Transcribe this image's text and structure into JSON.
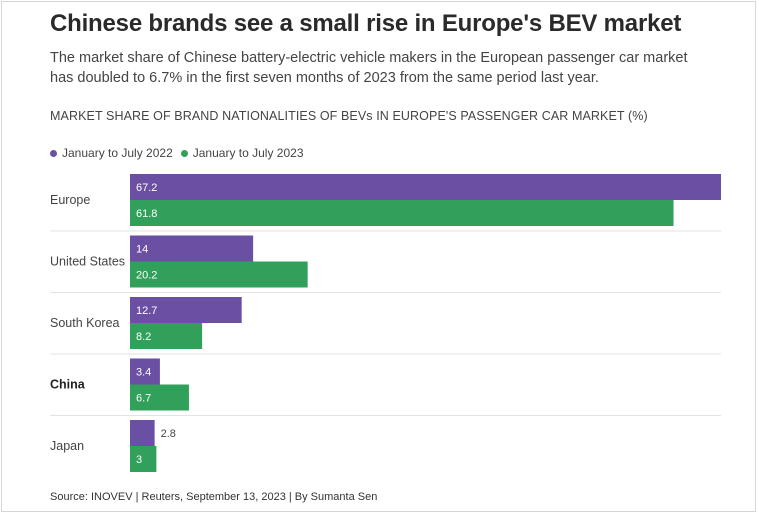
{
  "title": "Chinese brands see a small rise in Europe's BEV market",
  "subtitle": "The market share of Chinese battery-electric vehicle makers in the European passenger car market has doubled to 6.7% in the first seven months of 2023 from the same period last year.",
  "chart_label": "MARKET SHARE OF BRAND NATIONALITIES OF BEVs IN EUROPE'S PASSENGER CAR MARKET (%)",
  "source": "Source: INOVEV | Reuters, September 13, 2023 | By Sumanta Sen",
  "colors": {
    "series_2022": "#6a4fa3",
    "series_2023": "#30a05a",
    "divider": "#e3e3e3"
  },
  "legend": [
    {
      "label": "January to July 2022",
      "color_key": "series_2022"
    },
    {
      "label": "January to July 2023",
      "color_key": "series_2023"
    }
  ],
  "chart_data": {
    "type": "bar",
    "orientation": "horizontal",
    "title": "MARKET SHARE OF BRAND NATIONALITIES OF BEVs IN EUROPE'S PASSENGER CAR MARKET (%)",
    "categories": [
      "Europe",
      "United States",
      "South Korea",
      "China",
      "Japan"
    ],
    "highlight_category": "China",
    "series": [
      {
        "name": "January to July 2022",
        "values": [
          67.2,
          14,
          12.7,
          3.4,
          2.8
        ]
      },
      {
        "name": "January to July 2023",
        "values": [
          61.8,
          20.2,
          8.2,
          6.7,
          3
        ]
      }
    ],
    "xlim": [
      0,
      67.2
    ],
    "grid": false,
    "legend_position": "top-left"
  }
}
